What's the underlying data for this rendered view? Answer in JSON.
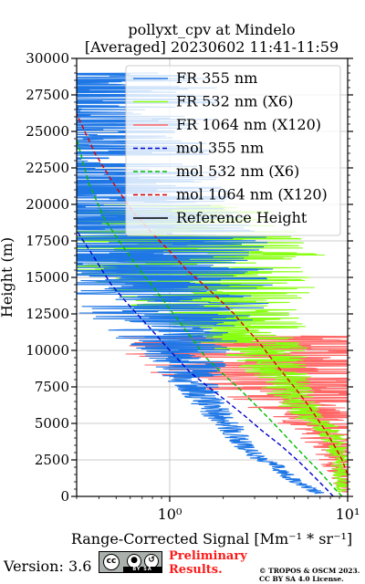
{
  "chart_data": {
    "type": "line",
    "title": "pollyxt_cpv at Mindelo",
    "subtitle": "[Averaged] 20230602 11:41-11:59",
    "xlabel": "Range-Corrected Signal [Mm⁻¹ * sr⁻¹]",
    "ylabel": "Height (m)",
    "xscale": "log",
    "xlim": [
      0.3,
      10
    ],
    "ylim": [
      0,
      30000
    ],
    "xticks": [
      1,
      10
    ],
    "xtick_labels": [
      "10⁰",
      "10¹"
    ],
    "yticks": [
      0,
      2500,
      5000,
      7500,
      10000,
      12500,
      15000,
      17500,
      20000,
      22500,
      25000,
      27500,
      30000
    ],
    "ytick_labels": [
      "0",
      "2500",
      "5000",
      "7500",
      "10000",
      "12500",
      "15000",
      "17500",
      "20000",
      "22500",
      "25000",
      "27500",
      "30000"
    ],
    "grid": true,
    "legend_position": "top-right",
    "series": [
      {
        "name": "FR 355 nm",
        "color": "#1f77e6",
        "style": "solid",
        "noisy": true,
        "x": [
          7.0,
          6.5,
          5.5,
          4.5,
          3.8,
          3.2,
          2.7,
          2.4,
          2.2,
          2.0,
          1.8,
          1.6,
          1.45,
          1.35,
          1.25,
          1.15,
          1.1,
          1.05,
          1.0,
          0.95,
          0.85,
          0.7,
          0.55,
          0.45,
          0.38,
          0.33,
          0.31,
          0.3
        ],
        "y": [
          200,
          400,
          800,
          1500,
          2200,
          2600,
          3200,
          4000,
          4800,
          5200,
          5800,
          6600,
          7500,
          8000,
          9000,
          10000,
          11000,
          12000,
          12500,
          13500,
          15000,
          16500,
          18000,
          19500,
          21000,
          23000,
          25000,
          29000
        ],
        "spread": [
          0.05,
          0.05,
          0.06,
          0.06,
          0.07,
          0.07,
          0.08,
          0.09,
          0.1,
          0.1,
          0.12,
          0.14,
          0.16,
          0.2,
          0.28,
          0.35,
          0.45,
          0.55,
          0.65,
          0.75,
          0.85,
          0.95,
          1.0,
          1.0,
          1.0,
          1.0,
          1.0,
          1.0
        ]
      },
      {
        "name": "FR 532 nm (X6)",
        "color": "#88ff11",
        "style": "solid",
        "noisy": true,
        "x": [
          9.5,
          9.2,
          8.8,
          8.0,
          6.5,
          5.5,
          4.5,
          4.0,
          3.5,
          3.0,
          2.6,
          2.2,
          1.9,
          1.6,
          1.35,
          1.2,
          1.0,
          0.85,
          0.7
        ],
        "y": [
          300,
          1500,
          3000,
          4500,
          5200,
          6000,
          7500,
          8500,
          9500,
          10500,
          11500,
          12500,
          13500,
          14500,
          15500,
          16500,
          17500,
          18500,
          20000
        ],
        "spread": [
          0.05,
          0.06,
          0.08,
          0.1,
          0.12,
          0.15,
          0.18,
          0.25,
          0.3,
          0.4,
          0.5,
          0.6,
          0.7,
          0.8,
          0.9,
          1.0,
          1.0,
          1.0,
          1.0
        ]
      },
      {
        "name": "FR 1064 nm (X120)",
        "color": "#ff6666",
        "style": "solid",
        "noisy": true,
        "x": [
          9.8,
          9.5,
          9.0,
          8.5,
          7.8,
          7.0,
          6.2,
          5.5,
          4.8,
          4.2,
          3.6,
          3.1
        ],
        "y": [
          300,
          1000,
          2000,
          3200,
          4000,
          5000,
          6000,
          7000,
          7500,
          8500,
          9500,
          11000
        ],
        "spread": [
          0.08,
          0.1,
          0.12,
          0.16,
          0.2,
          0.3,
          0.45,
          0.6,
          0.8,
          1.0,
          1.0,
          1.0
        ]
      },
      {
        "name": "mol 355 nm",
        "color": "#0000cc",
        "style": "dashed",
        "x": [
          8.3,
          7.6,
          6.3,
          5.2,
          4.2,
          3.3,
          2.65,
          2.1,
          1.65,
          1.3,
          1.0,
          0.78,
          0.6,
          0.47,
          0.37,
          0.3
        ],
        "y": [
          0,
          500,
          1500,
          2500,
          3500,
          4500,
          5500,
          6500,
          7500,
          8500,
          10000,
          11500,
          13000,
          14500,
          16500,
          18200
        ]
      },
      {
        "name": "mol 532 nm (X6)",
        "color": "#00bb00",
        "style": "dashed",
        "x": [
          9.3,
          8.5,
          7.2,
          6.0,
          5.0,
          4.2,
          3.5,
          2.9,
          2.4,
          1.95,
          1.6,
          1.3,
          1.05,
          0.85,
          0.68,
          0.54,
          0.43,
          0.35,
          0.3
        ],
        "y": [
          0,
          500,
          1500,
          2500,
          3500,
          4500,
          5500,
          6500,
          7500,
          8500,
          9500,
          11000,
          12500,
          14000,
          15500,
          17200,
          19000,
          21500,
          24500
        ]
      },
      {
        "name": "mol 1064 nm (X120)",
        "color": "#dd0000",
        "style": "dashed",
        "x": [
          10.0,
          9.3,
          8.4,
          7.5,
          6.6,
          5.8,
          5.0,
          4.3,
          3.7,
          3.2,
          2.7,
          2.3,
          1.9,
          1.55,
          1.25,
          1.0,
          0.8,
          0.62,
          0.48,
          0.38,
          0.3
        ],
        "y": [
          1500,
          2500,
          3500,
          4500,
          5500,
          6500,
          7500,
          8500,
          9500,
          10500,
          11500,
          12500,
          13500,
          14500,
          15500,
          16800,
          18000,
          19500,
          21500,
          23500,
          26200
        ]
      },
      {
        "name": "Reference Height",
        "color": "#000000",
        "style": "solid",
        "x": [],
        "y": []
      }
    ]
  },
  "footer": {
    "version": "Version: 3.6",
    "license_badge_text": "BY   SA",
    "preliminary_line1": "Preliminary",
    "preliminary_line2": "Results.",
    "copyright_line1": "© TROPOS & OSCM 2023.",
    "copyright_line2": "CC BY SA 4.0 License."
  }
}
